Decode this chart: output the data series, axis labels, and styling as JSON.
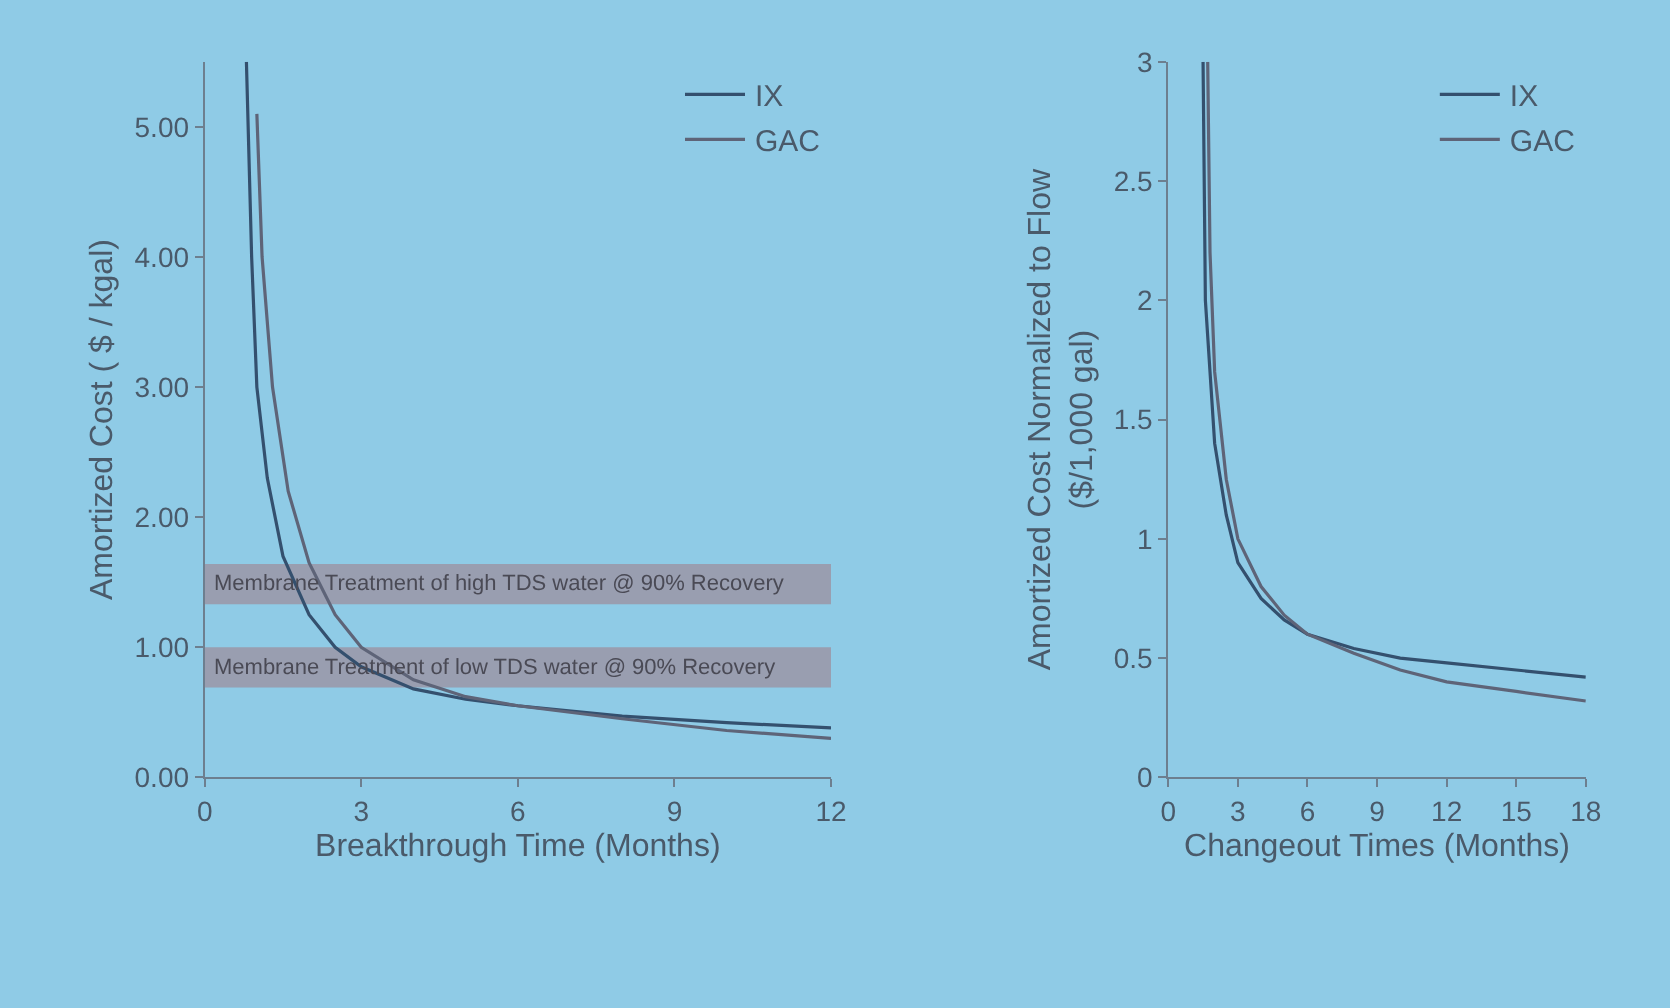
{
  "chart_data": [
    {
      "type": "line",
      "xlabel": "Breakthrough Time (Months)",
      "ylabel": "Amortized Cost ( $ / kgal)",
      "xlim": [
        0,
        12
      ],
      "xticks": [
        0,
        3,
        6,
        9,
        12
      ],
      "ylim": [
        0,
        5.5
      ],
      "yticks": [
        {
          "value": 0,
          "label": "0.00"
        },
        {
          "value": 1,
          "label": "1.00"
        },
        {
          "value": 2,
          "label": "2.00"
        },
        {
          "value": 3,
          "label": "3.00"
        },
        {
          "value": 4,
          "label": "4.00"
        },
        {
          "value": 5,
          "label": "5.00"
        }
      ],
      "grid": false,
      "legend": "top right",
      "marker": "none",
      "line_style": "solid",
      "series": [
        {
          "name": "IX",
          "color": "#34506e",
          "x": [
            0.8,
            0.9,
            1.0,
            1.2,
            1.5,
            2,
            2.5,
            3,
            4,
            5,
            6,
            8,
            10,
            12
          ],
          "values": [
            5.5,
            4.0,
            3.0,
            2.3,
            1.7,
            1.25,
            1.0,
            0.85,
            0.68,
            0.6,
            0.55,
            0.47,
            0.42,
            0.38
          ]
        },
        {
          "name": "GAC",
          "color": "#5e6478",
          "x": [
            1.0,
            1.1,
            1.3,
            1.6,
            2,
            2.5,
            3,
            4,
            5,
            6,
            8,
            10,
            12
          ],
          "values": [
            5.1,
            4.0,
            3.0,
            2.2,
            1.65,
            1.25,
            1.0,
            0.75,
            0.62,
            0.55,
            0.45,
            0.36,
            0.3
          ]
        }
      ],
      "bands": [
        {
          "axis": "y",
          "from": 1.33,
          "to": 1.64,
          "label": "Membrane Treatment of high TDS water @ 90% Recovery",
          "color": "#9c8f9e"
        },
        {
          "axis": "y",
          "from": 0.69,
          "to": 1.0,
          "label": "Membrane Treatment of low TDS water @ 90% Recovery",
          "color": "#9c8f9e"
        }
      ]
    },
    {
      "type": "line",
      "xlabel": "Changeout Times (Months)",
      "ylabel": "Amortized Cost Normalized to Flow\n($/1,000 gal)",
      "xlim": [
        0,
        18
      ],
      "xticks": [
        0,
        3,
        6,
        9,
        12,
        15,
        18
      ],
      "ylim": [
        0,
        3
      ],
      "yticks": [
        0,
        0.5,
        1,
        1.5,
        2,
        2.5,
        3
      ],
      "grid": false,
      "legend": "top right",
      "marker": "none",
      "line_style": "solid",
      "series": [
        {
          "name": "IX",
          "color": "#34506e",
          "x": [
            1.5,
            1.6,
            2,
            2.5,
            3,
            4,
            5,
            6,
            8,
            10,
            12,
            15,
            18
          ],
          "values": [
            3.0,
            2.0,
            1.4,
            1.1,
            0.9,
            0.75,
            0.66,
            0.6,
            0.54,
            0.5,
            0.48,
            0.45,
            0.42
          ]
        },
        {
          "name": "GAC",
          "color": "#5e6478",
          "x": [
            1.7,
            1.8,
            2,
            2.5,
            3,
            4,
            5,
            6,
            8,
            10,
            12,
            15,
            18
          ],
          "values": [
            3.0,
            2.2,
            1.7,
            1.25,
            1.0,
            0.8,
            0.68,
            0.6,
            0.52,
            0.45,
            0.4,
            0.36,
            0.32
          ]
        }
      ]
    }
  ]
}
